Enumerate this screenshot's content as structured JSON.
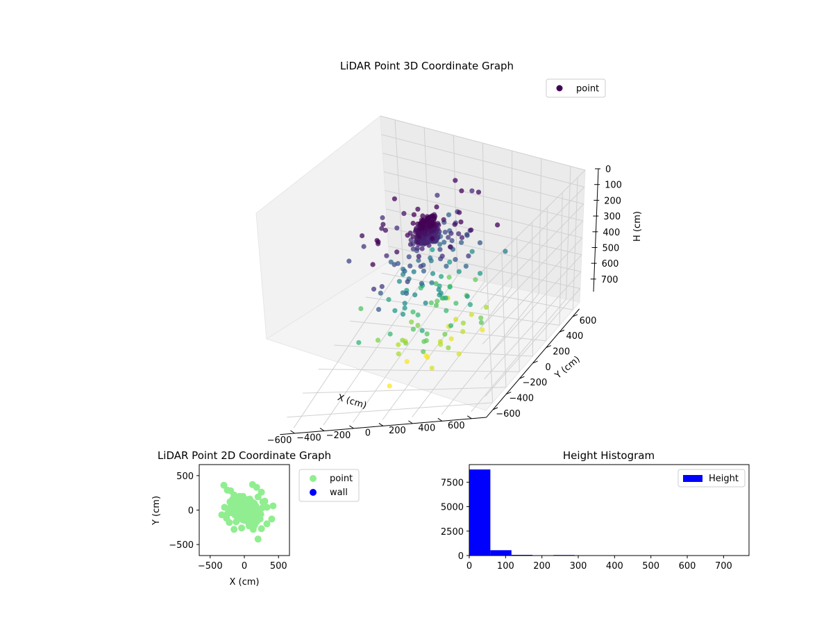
{
  "chart_data": [
    {
      "type": "scatter",
      "projection": "3d",
      "title": "LiDAR Point 3D Coordinate Graph",
      "xlabel": "X (cm)",
      "ylabel": "Y (cm)",
      "zlabel": "H (cm)",
      "xlim": [
        -700,
        700
      ],
      "ylim": [
        -700,
        700
      ],
      "zlim": [
        0,
        780
      ],
      "z_axis_inverted": true,
      "xticks": [
        "−600",
        "−400",
        "−200",
        "0",
        "200",
        "400",
        "600"
      ],
      "yticks": [
        "−600",
        "−400",
        "−200",
        "0",
        "200",
        "400",
        "600"
      ],
      "zticks": [
        "0",
        "100",
        "200",
        "300",
        "400",
        "500",
        "600",
        "700"
      ],
      "grid": true,
      "colormap": "viridis",
      "legend": {
        "placement": "top-right",
        "entries": [
          {
            "label": "point",
            "color": "#440154"
          }
        ]
      },
      "point_cloud": {
        "dense_core": {
          "center_x": 0,
          "center_y": 0,
          "radius": 70,
          "h_range": [
            0,
            120
          ],
          "count": 380
        },
        "scattered": {
          "radius_range": [
            80,
            520
          ],
          "h_range": [
            0,
            760
          ],
          "count": 190
        }
      }
    },
    {
      "type": "scatter",
      "title": "LiDAR Point 2D Coordinate Graph",
      "xlabel": "X (cm)",
      "ylabel": "Y (cm)",
      "xlim": [
        -660,
        660
      ],
      "ylim": [
        -660,
        660
      ],
      "xticks": [
        "−500",
        "0",
        "500"
      ],
      "yticks": [
        "500",
        "0",
        "−500"
      ],
      "legend": {
        "placement": "outside-right",
        "entries": [
          {
            "label": "point",
            "color": "#90ee90"
          },
          {
            "label": "wall",
            "color": "#0000ff"
          }
        ]
      },
      "series": [
        {
          "name": "point",
          "color": "#90ee90",
          "points": [
            [
              -300,
              360
            ],
            [
              -250,
              290
            ],
            [
              -200,
              280
            ],
            [
              -150,
              220
            ],
            [
              120,
              370
            ],
            [
              180,
              330
            ],
            [
              250,
              260
            ],
            [
              200,
              190
            ],
            [
              300,
              130
            ],
            [
              330,
              40
            ],
            [
              420,
              60
            ],
            [
              400,
              -130
            ],
            [
              330,
              -200
            ],
            [
              250,
              -270
            ],
            [
              200,
              -420
            ],
            [
              130,
              -280
            ],
            [
              -40,
              -260
            ],
            [
              -150,
              -280
            ],
            [
              -220,
              -180
            ],
            [
              -260,
              -120
            ],
            [
              -330,
              -70
            ],
            [
              -290,
              40
            ],
            [
              -210,
              120
            ],
            [
              -150,
              80
            ],
            [
              -100,
              160
            ],
            [
              -60,
              140
            ],
            [
              -20,
              200
            ],
            [
              40,
              140
            ],
            [
              80,
              160
            ],
            [
              140,
              100
            ],
            [
              170,
              50
            ],
            [
              210,
              0
            ],
            [
              240,
              -60
            ],
            [
              170,
              -100
            ],
            [
              120,
              -160
            ],
            [
              60,
              -180
            ],
            [
              0,
              -150
            ],
            [
              -60,
              -120
            ],
            [
              -120,
              -80
            ],
            [
              -180,
              -40
            ],
            [
              -150,
              20
            ],
            [
              -90,
              40
            ],
            [
              -40,
              90
            ],
            [
              20,
              60
            ],
            [
              80,
              20
            ],
            [
              120,
              -40
            ],
            [
              60,
              -60
            ],
            [
              10,
              -20
            ],
            [
              -40,
              -10
            ],
            [
              -80,
              -50
            ],
            [
              -20,
              40
            ],
            [
              40,
              -100
            ],
            [
              100,
              80
            ],
            [
              -120,
              -170
            ],
            [
              150,
              -220
            ],
            [
              -200,
              50
            ],
            [
              270,
              120
            ],
            [
              230,
              -130
            ],
            [
              -250,
              -60
            ],
            [
              -70,
              200
            ],
            [
              70,
              -230
            ],
            [
              180,
              -170
            ],
            [
              -170,
              160
            ],
            [
              0,
              0
            ],
            [
              30,
              30
            ],
            [
              -30,
              -40
            ],
            [
              50,
              -10
            ],
            [
              -10,
              60
            ],
            [
              90,
              -120
            ],
            [
              -110,
              110
            ],
            [
              260,
              30
            ],
            [
              -230,
              -10
            ],
            [
              140,
              -110
            ]
          ]
        },
        {
          "name": "wall",
          "color": "#0000ff",
          "points": []
        }
      ]
    },
    {
      "type": "bar",
      "histogram": true,
      "title": "Height Histogram",
      "xlim": [
        0,
        770
      ],
      "ylim": [
        0,
        9300
      ],
      "xticks": [
        "0",
        "100",
        "200",
        "300",
        "400",
        "500",
        "600",
        "700"
      ],
      "yticks": [
        "0",
        "2500",
        "5000",
        "7500"
      ],
      "legend": {
        "placement": "top-right",
        "entries": [
          {
            "label": "Height",
            "color": "#0000ff"
          }
        ]
      },
      "bin_width": 58,
      "bin_edges": [
        0,
        58,
        116,
        174,
        232,
        290,
        348,
        406,
        464,
        522,
        580,
        638,
        696,
        754
      ],
      "series": [
        {
          "name": "Height",
          "color": "#0000ff",
          "values": [
            8800,
            550,
            70,
            15,
            60,
            8,
            5,
            3,
            2,
            2,
            1,
            1,
            1
          ]
        }
      ]
    }
  ]
}
